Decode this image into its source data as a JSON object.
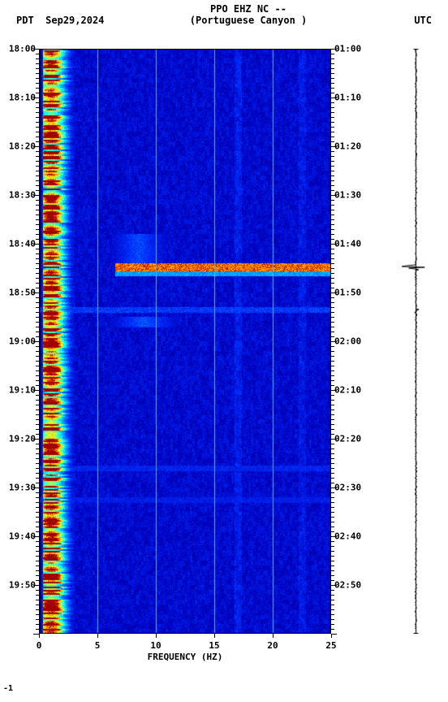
{
  "header": {
    "station_code": "PPO EHZ NC --",
    "station_name": "(Portuguese Canyon )",
    "left_tz": "PDT",
    "date": "Sep29,2024",
    "right_tz": "UTC"
  },
  "spectrogram": {
    "type": "spectrogram",
    "xlabel": "FREQUENCY (HZ)",
    "xlim": [
      0,
      25
    ],
    "xticks": [
      0,
      5,
      10,
      15,
      20,
      25
    ],
    "y_left_labels": [
      "18:00",
      "18:10",
      "18:20",
      "18:30",
      "18:40",
      "18:50",
      "19:00",
      "19:10",
      "19:20",
      "19:30",
      "19:40",
      "19:50"
    ],
    "y_right_labels": [
      "01:00",
      "01:10",
      "01:20",
      "01:30",
      "01:40",
      "01:50",
      "02:00",
      "02:10",
      "02:20",
      "02:30",
      "02:40",
      "02:50"
    ],
    "y_minutes_range": 120,
    "minor_tick_interval_min": 1,
    "major_tick_interval_min": 10,
    "gridline_color": "#6aa7e5",
    "colormap": {
      "stops": [
        [
          0.0,
          "#000070"
        ],
        [
          0.15,
          "#0000c0"
        ],
        [
          0.3,
          "#0030ff"
        ],
        [
          0.45,
          "#0090ff"
        ],
        [
          0.6,
          "#00ffff"
        ],
        [
          0.72,
          "#80ff80"
        ],
        [
          0.82,
          "#ffff00"
        ],
        [
          0.92,
          "#ff7000"
        ],
        [
          1.0,
          "#a00000"
        ]
      ]
    },
    "base_noise_level": 0.18,
    "low_freq_band": {
      "freq_range": [
        0.2,
        3.0
      ],
      "peak_freq": 1.0,
      "intensity": 0.95,
      "spread": 0.95
    },
    "events": [
      {
        "start_min": 44.0,
        "end_min": 45.5,
        "freq_start": 6.5,
        "freq_end": 25.0,
        "intensity": 1.0,
        "type": "strong"
      },
      {
        "start_min": 45.5,
        "end_min": 46.5,
        "freq_start": 6.5,
        "freq_end": 25.0,
        "intensity": 0.55,
        "type": "band"
      },
      {
        "start_min": 38.0,
        "end_min": 44.0,
        "freq_start": 6.0,
        "freq_end": 11.0,
        "intensity": 0.4,
        "type": "patch"
      },
      {
        "start_min": 53.0,
        "end_min": 54.0,
        "freq_start": 0.0,
        "freq_end": 25.0,
        "intensity": 0.38,
        "type": "line"
      },
      {
        "start_min": 55.0,
        "end_min": 57.0,
        "freq_start": 6.0,
        "freq_end": 12.0,
        "intensity": 0.42,
        "type": "patch"
      },
      {
        "start_min": 85.5,
        "end_min": 86.5,
        "freq_start": 0.0,
        "freq_end": 25.0,
        "intensity": 0.32,
        "type": "line"
      },
      {
        "start_min": 92.0,
        "end_min": 93.0,
        "freq_start": 0.0,
        "freq_end": 25.0,
        "intensity": 0.3,
        "type": "line"
      }
    ],
    "vertical_stripes": [
      {
        "freq": 17.0,
        "intensity": 0.06,
        "width": 0.3
      },
      {
        "freq": 22.5,
        "intensity": 0.05,
        "width": 0.3
      }
    ]
  },
  "waveform": {
    "baseline_amplitude": 0.04,
    "line_color": "#000000",
    "events": [
      {
        "time_min": 44.5,
        "amplitude": 1.0,
        "duration_min": 3.0
      },
      {
        "time_min": 53.5,
        "amplitude": 0.15,
        "duration_min": 1.0
      }
    ]
  },
  "footer_mark": "-1"
}
